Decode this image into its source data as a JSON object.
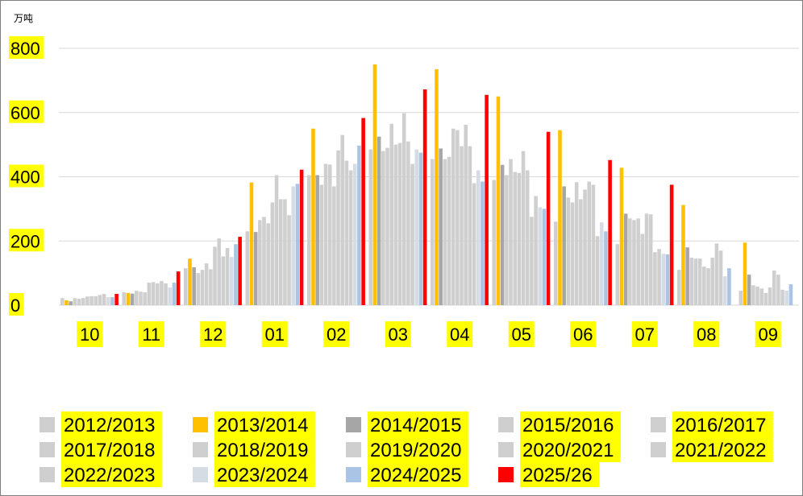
{
  "chart_data": {
    "type": "bar",
    "unit_label": "万吨",
    "ylim": [
      0,
      800
    ],
    "yticks": [
      "0",
      "200",
      "400",
      "600",
      "800"
    ],
    "grid": true,
    "legend_position": "bottom",
    "categories": [
      "10",
      "11",
      "12",
      "01",
      "02",
      "03",
      "04",
      "05",
      "06",
      "07",
      "08",
      "09"
    ],
    "series": [
      {
        "name": "2012/2013",
        "color": "#cfcfcf",
        "values": [
          22,
          40,
          115,
          230,
          405,
          485,
          455,
          390,
          260,
          190,
          110,
          45
        ]
      },
      {
        "name": "2013/2014",
        "color": "#ffc000",
        "values": [
          15,
          38,
          145,
          382,
          550,
          750,
          735,
          650,
          545,
          428,
          312,
          195
        ]
      },
      {
        "name": "2014/2015",
        "color": "#a6a6a6",
        "values": [
          12,
          36,
          118,
          228,
          405,
          525,
          488,
          437,
          370,
          285,
          180,
          95
        ]
      },
      {
        "name": "2015/2016",
        "color": "#cfcfcf",
        "values": [
          22,
          45,
          100,
          265,
          375,
          480,
          455,
          405,
          335,
          270,
          148,
          62
        ]
      },
      {
        "name": "2016/2017",
        "color": "#cfcfcf",
        "values": [
          20,
          42,
          110,
          275,
          440,
          490,
          462,
          455,
          320,
          265,
          145,
          58
        ]
      },
      {
        "name": "2017/2018",
        "color": "#cfcfcf",
        "values": [
          22,
          40,
          130,
          255,
          438,
          565,
          550,
          415,
          383,
          270,
          145,
          52
        ]
      },
      {
        "name": "2018/2019",
        "color": "#cfcfcf",
        "values": [
          27,
          70,
          112,
          320,
          370,
          500,
          545,
          412,
          330,
          222,
          120,
          38
        ]
      },
      {
        "name": "2019/2020",
        "color": "#cfcfcf",
        "values": [
          28,
          72,
          182,
          405,
          482,
          505,
          495,
          480,
          360,
          285,
          115,
          55
        ]
      },
      {
        "name": "2020/2021",
        "color": "#cfcfcf",
        "values": [
          28,
          68,
          208,
          330,
          530,
          598,
          562,
          420,
          385,
          283,
          148,
          108
        ]
      },
      {
        "name": "2021/2022",
        "color": "#cfcfcf",
        "values": [
          32,
          75,
          152,
          330,
          450,
          510,
          495,
          275,
          375,
          165,
          192,
          95
        ]
      },
      {
        "name": "2022/2023",
        "color": "#cfcfcf",
        "values": [
          35,
          68,
          178,
          280,
          420,
          440,
          380,
          340,
          215,
          175,
          170,
          48
        ]
      },
      {
        "name": "2023/2024",
        "color": "#d6dce4",
        "values": [
          25,
          55,
          150,
          370,
          440,
          485,
          420,
          305,
          258,
          160,
          90,
          45
        ]
      },
      {
        "name": "2024/2025",
        "color": "#a9c4e5",
        "values": [
          25,
          70,
          190,
          378,
          497,
          475,
          385,
          300,
          230,
          158,
          115,
          65
        ]
      },
      {
        "name": "2025/26",
        "color": "#ff0000",
        "values": [
          35,
          105,
          213,
          422,
          583,
          672,
          655,
          540,
          452,
          375,
          null,
          null
        ]
      }
    ]
  }
}
